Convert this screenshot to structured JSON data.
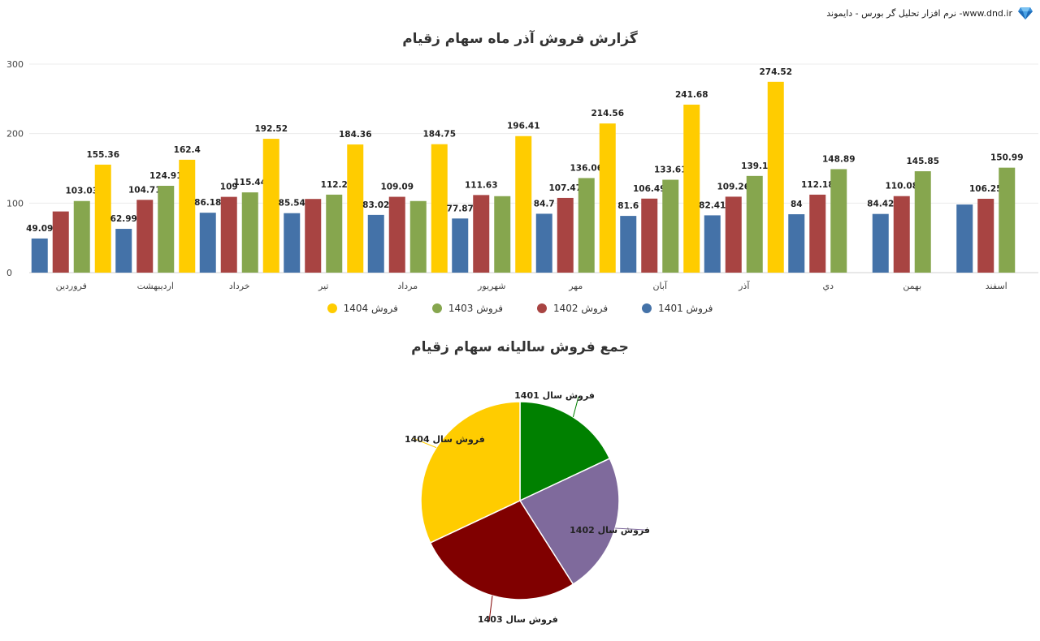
{
  "header": {
    "brand_text": "نرم افزار تحلیل گر بورس - دایموند -www.dnd.ir",
    "brand_icon": "diamond-icon"
  },
  "chart_data": [
    {
      "type": "bar",
      "title": "گزارش فروش آذر ماه سهام زقیام",
      "categories": [
        "فروردین",
        "اردیبهشت",
        "خرداد",
        "تیر",
        "مرداد",
        "شهریور",
        "مهر",
        "آبان",
        "آذر",
        "دي",
        "بهمن",
        "اسفند"
      ],
      "ylim": [
        0,
        300
      ],
      "yticks": [
        0,
        100,
        200,
        300
      ],
      "grid": true,
      "legend_position": "bottom",
      "series": [
        {
          "name": "فروش 1401",
          "color": "#4472A8",
          "values": [
            49.09,
            62.99,
            86.18,
            85.54,
            83.02,
            77.87,
            84.7,
            81.6,
            82.41,
            84,
            84.42,
            98
          ],
          "labels": [
            "49.09",
            "62.99",
            "86.18",
            "85.54",
            "83.02",
            "77.87",
            "84.7",
            "81.6",
            "82.41",
            "84",
            "84.42",
            ""
          ]
        },
        {
          "name": "فروش 1402",
          "color": "#A84442",
          "values": [
            88,
            104.71,
            109,
            106,
            109.09,
            111.63,
            107.47,
            106.49,
            109.26,
            112.18,
            110.08,
            106.25
          ],
          "labels": [
            "",
            "104.71",
            "109",
            "",
            "109.09",
            "111.63",
            "107.47",
            "106.49",
            "109.26",
            "112.18",
            "110.08",
            "106.25"
          ]
        },
        {
          "name": "فروش 1403",
          "color": "#86A64E",
          "values": [
            103.03,
            124.91,
            115.44,
            112.2,
            103,
            110,
            136.06,
            133.61,
            139.1,
            148.89,
            145.85,
            150.99
          ],
          "labels": [
            "103.03",
            "124.91",
            "115.44",
            "112.2",
            "",
            "",
            "136.06",
            "133.61",
            "139.1",
            "148.89",
            "145.85",
            "150.99"
          ]
        },
        {
          "name": "فروش 1404",
          "color": "#FFCC00",
          "values": [
            155.36,
            162.4,
            192.52,
            184.36,
            184.75,
            196.41,
            214.56,
            241.68,
            274.52,
            null,
            null,
            null
          ],
          "labels": [
            "155.36",
            "162.4",
            "192.52",
            "184.36",
            "184.75",
            "196.41",
            "214.56",
            "241.68",
            "274.52",
            "",
            "",
            ""
          ]
        }
      ]
    },
    {
      "type": "pie",
      "title": "جمع فروش سالیانه سهام زقیام",
      "slices": [
        {
          "name": "فروش سال 1401",
          "value": 18,
          "color": "#008000"
        },
        {
          "name": "فروش سال 1402",
          "value": 23,
          "color": "#7F6A9C"
        },
        {
          "name": "فروش سال 1403",
          "value": 27,
          "color": "#800000"
        },
        {
          "name": "فروش سال 1404",
          "value": 32,
          "color": "#FFCC00"
        }
      ]
    }
  ]
}
